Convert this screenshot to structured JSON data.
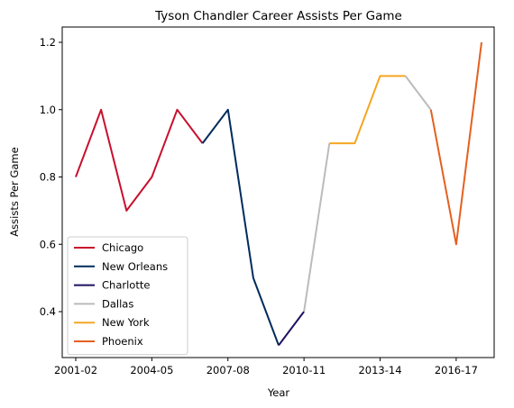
{
  "chart_data": {
    "type": "line",
    "title": "Tyson Chandler Career Assists Per Game",
    "xlabel": "Year",
    "ylabel": "Assists Per Game",
    "x_tick_labels": [
      "2001-02",
      "2004-05",
      "2007-08",
      "2010-11",
      "2013-14",
      "2016-17"
    ],
    "y_tick_labels": [
      "0.4",
      "0.6",
      "0.8",
      "1.0",
      "1.2"
    ],
    "seasons": [
      "2001-02",
      "2002-03",
      "2003-04",
      "2004-05",
      "2005-06",
      "2006-07",
      "2007-08",
      "2008-09",
      "2009-10",
      "2010-11",
      "2011-12",
      "2012-13",
      "2013-14",
      "2014-15",
      "2015-16",
      "2016-17",
      "2017-18"
    ],
    "ylim": [
      0.25,
      1.25
    ],
    "grid": false,
    "legend_position": "lower-left",
    "series": [
      {
        "name": "Chicago",
        "color": "#c8102e",
        "x": [
          "2001-02",
          "2002-03",
          "2003-04",
          "2004-05",
          "2005-06",
          "2006-07"
        ],
        "values": [
          0.8,
          1.0,
          0.7,
          0.8,
          1.0,
          0.9
        ]
      },
      {
        "name": "New Orleans",
        "color": "#002b5c",
        "x": [
          "2006-07",
          "2007-08",
          "2008-09",
          "2009-10"
        ],
        "values": [
          0.9,
          1.0,
          0.5,
          0.3
        ]
      },
      {
        "name": "Charlotte",
        "color": "#1d1160",
        "x": [
          "2009-10",
          "2010-11"
        ],
        "values": [
          0.3,
          0.4
        ]
      },
      {
        "name": "Dallas",
        "color": "#bbbbbb",
        "x": [
          "2010-11",
          "2011-12"
        ],
        "values": [
          0.4,
          0.9
        ]
      },
      {
        "name": "New York",
        "color": "#f5a623",
        "x": [
          "2011-12",
          "2012-13",
          "2013-14",
          "2014-15"
        ],
        "values": [
          0.9,
          0.9,
          1.1,
          1.1
        ]
      },
      {
        "name": "Dallas",
        "color": "#bbbbbb",
        "x": [
          "2014-15",
          "2015-16"
        ],
        "values": [
          1.1,
          1.0
        ],
        "legend": false
      },
      {
        "name": "Phoenix",
        "color": "#e56020",
        "x": [
          "2015-16",
          "2016-17",
          "2017-18"
        ],
        "values": [
          1.0,
          0.6,
          1.2
        ]
      }
    ]
  }
}
